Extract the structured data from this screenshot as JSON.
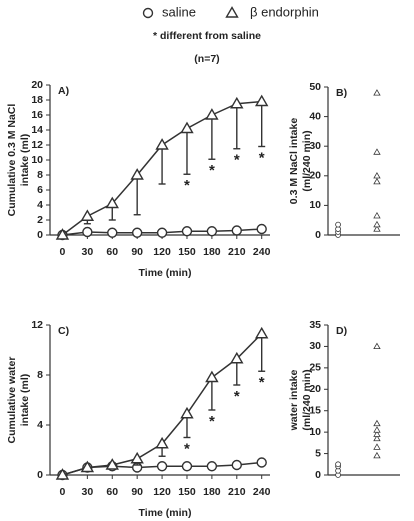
{
  "chart_data": [
    {
      "type": "line",
      "title": "A)",
      "ylabel": [
        "Cumulative 0.3 M NaCl",
        "intake (ml)"
      ],
      "xlabel": "Time (min)",
      "annotations": [
        "* different from saline",
        "(n=7)"
      ],
      "x": [
        0,
        30,
        60,
        90,
        120,
        150,
        180,
        210,
        240
      ],
      "xlim": [
        -15,
        250
      ],
      "xticks": [
        0,
        30,
        60,
        90,
        120,
        150,
        180,
        210,
        240
      ],
      "ylim": [
        0,
        20
      ],
      "yticks": [
        0,
        2,
        4,
        6,
        8,
        10,
        12,
        14,
        16,
        18,
        20
      ],
      "series": [
        {
          "name": "saline",
          "marker": "circle",
          "color": "#333333",
          "values": [
            0,
            0.4,
            0.3,
            0.3,
            0.3,
            0.5,
            0.5,
            0.6,
            0.8
          ]
        },
        {
          "name": "β endorphin",
          "marker": "triangle",
          "color": "#333333",
          "values": [
            0,
            2.5,
            4.2,
            8,
            12,
            14.2,
            16,
            17.5,
            17.8
          ],
          "errors": [
            0,
            1,
            2.2,
            5.3,
            5.2,
            6.1,
            5.9,
            6,
            6
          ],
          "significance": [
            null,
            null,
            null,
            null,
            null,
            "*",
            "*",
            "*",
            "*"
          ]
        }
      ]
    },
    {
      "type": "strip",
      "title": "B)",
      "ylabel": [
        "0.3 M NaCl intake",
        "(ml/240 min)"
      ],
      "ylim": [
        0,
        50
      ],
      "yticks": [
        0,
        10,
        20,
        30,
        40,
        50
      ],
      "series": [
        {
          "name": "saline",
          "marker": "circle",
          "color": "#333333",
          "values": [
            0,
            1,
            2,
            3.5
          ]
        },
        {
          "name": "β endorphin",
          "marker": "triangle",
          "color": "#333333",
          "values": [
            2,
            3.5,
            6.5,
            18,
            20,
            28,
            48
          ]
        }
      ]
    },
    {
      "type": "line",
      "title": "C)",
      "ylabel": [
        "Cumulative water",
        "intake (ml)"
      ],
      "xlabel": "Time (min)",
      "x": [
        0,
        30,
        60,
        90,
        120,
        150,
        180,
        210,
        240
      ],
      "xlim": [
        -15,
        250
      ],
      "xticks": [
        0,
        30,
        60,
        90,
        120,
        150,
        180,
        210,
        240
      ],
      "ylim": [
        0,
        12
      ],
      "yticks": [
        0,
        4,
        8,
        12
      ],
      "series": [
        {
          "name": "saline",
          "marker": "circle",
          "color": "#333333",
          "values": [
            0,
            0.6,
            0.7,
            0.6,
            0.7,
            0.7,
            0.7,
            0.8,
            1.0
          ]
        },
        {
          "name": "β endorphin",
          "marker": "triangle",
          "color": "#333333",
          "values": [
            0,
            0.6,
            0.8,
            1.3,
            2.5,
            4.9,
            7.8,
            9.3,
            11.3
          ],
          "errors": [
            0,
            0.2,
            0.3,
            0.5,
            1,
            1.9,
            2.6,
            2.1,
            3
          ],
          "significance": [
            null,
            null,
            null,
            null,
            null,
            "*",
            "*",
            "*",
            "*"
          ]
        }
      ]
    },
    {
      "type": "strip",
      "title": "D)",
      "ylabel": [
        "water intake",
        "(ml/240 min)"
      ],
      "ylim": [
        0,
        35
      ],
      "yticks": [
        0,
        5,
        10,
        15,
        20,
        25,
        30,
        35
      ],
      "series": [
        {
          "name": "saline",
          "marker": "circle",
          "color": "#333333",
          "values": [
            0,
            1,
            2,
            2.5
          ]
        },
        {
          "name": "β endorphin",
          "marker": "triangle",
          "color": "#333333",
          "values": [
            4.5,
            6.5,
            8.5,
            9.5,
            10.5,
            12,
            30
          ]
        }
      ]
    }
  ]
}
